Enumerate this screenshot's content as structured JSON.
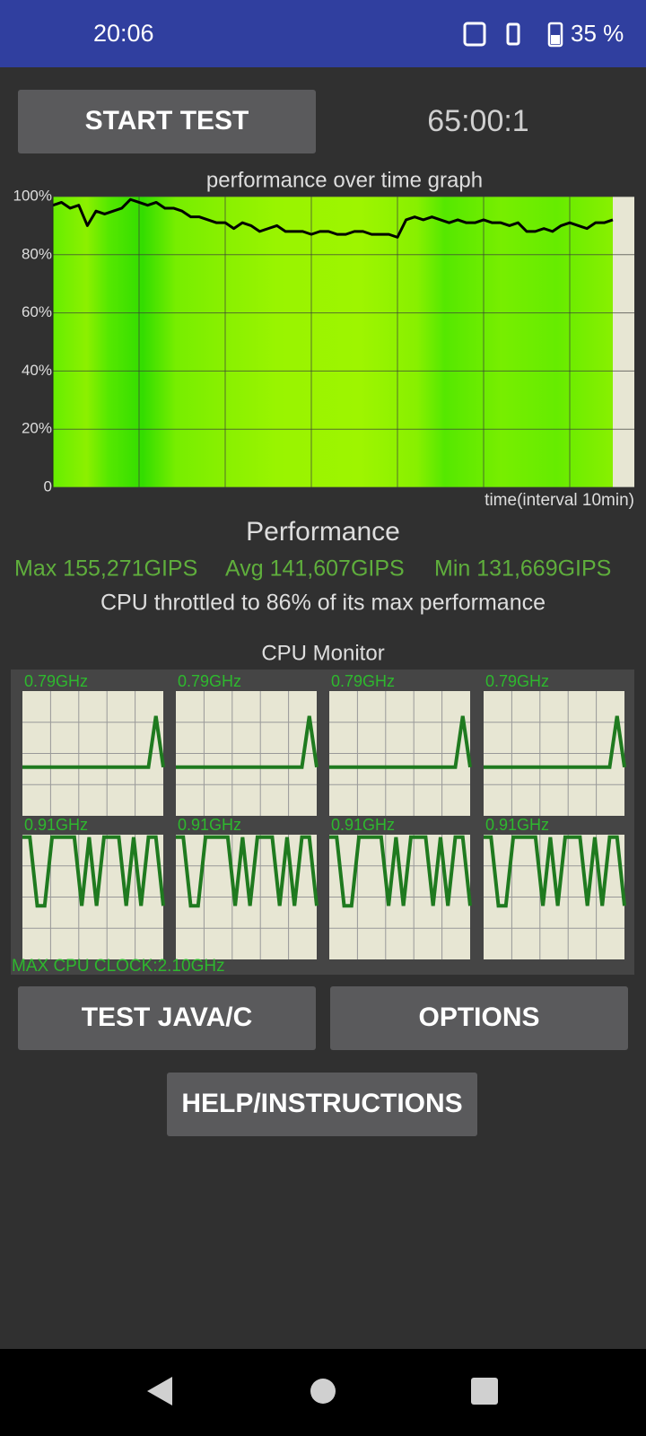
{
  "status_bar": {
    "time": "20:06",
    "battery": "35 %"
  },
  "buttons": {
    "start": "START TEST",
    "test_java": "TEST JAVA/C",
    "options": "OPTIONS",
    "help": "HELP/INSTRUCTIONS"
  },
  "timer": "65:00:1",
  "chart_data": {
    "type": "line",
    "title": "performance over time graph",
    "xlabel": "time(interval 10min)",
    "values": [
      97,
      98,
      96,
      97,
      90,
      95,
      94,
      95,
      96,
      99,
      98,
      97,
      98,
      96,
      96,
      95,
      93,
      93,
      92,
      91,
      91,
      89,
      91,
      90,
      88,
      89,
      90,
      88,
      88,
      88,
      87,
      88,
      88,
      87,
      87,
      88,
      88,
      87,
      87,
      87,
      86,
      92,
      93,
      92,
      93,
      92,
      91,
      92,
      91,
      91,
      92,
      91,
      91,
      90,
      91,
      88,
      88,
      89,
      88,
      90,
      91,
      90,
      89,
      91,
      91,
      92
    ],
    "color": "#000000",
    "ylim": [
      0,
      100
    ],
    "yticks": [
      0,
      {
        "value": 20,
        "label": "20%"
      },
      {
        "value": 40,
        "label": "40%"
      },
      {
        "value": 60,
        "label": "60%"
      },
      {
        "value": 80,
        "label": "80%"
      },
      {
        "value": 100,
        "label": "100%"
      }
    ],
    "grid": true
  },
  "performance": {
    "title": "Performance",
    "max": "Max 155,271GIPS",
    "avg": "Avg 141,607GIPS",
    "min": "Min 131,669GIPS",
    "throttle": "CPU throttled to 86% of its max performance"
  },
  "cpu_monitor": {
    "title": "CPU Monitor",
    "ylim": [
      0,
      100
    ],
    "color": "#1f7a1f",
    "cores": [
      {
        "label": "0.79GHz",
        "values": [
          39,
          39,
          39,
          39,
          39,
          39,
          39,
          39,
          39,
          39,
          39,
          39,
          39,
          39,
          39,
          39,
          39,
          39,
          80,
          39
        ]
      },
      {
        "label": "0.79GHz",
        "values": [
          39,
          39,
          39,
          39,
          39,
          39,
          39,
          39,
          39,
          39,
          39,
          39,
          39,
          39,
          39,
          39,
          39,
          39,
          80,
          39
        ]
      },
      {
        "label": "0.79GHz",
        "values": [
          39,
          39,
          39,
          39,
          39,
          39,
          39,
          39,
          39,
          39,
          39,
          39,
          39,
          39,
          39,
          39,
          39,
          39,
          80,
          39
        ]
      },
      {
        "label": "0.79GHz",
        "values": [
          39,
          39,
          39,
          39,
          39,
          39,
          39,
          39,
          39,
          39,
          39,
          39,
          39,
          39,
          39,
          39,
          39,
          39,
          80,
          39
        ]
      },
      {
        "label": "0.91GHz",
        "values": [
          98,
          98,
          43,
          43,
          98,
          98,
          98,
          98,
          43,
          98,
          43,
          98,
          98,
          98,
          43,
          98,
          43,
          98,
          98,
          43
        ]
      },
      {
        "label": "0.91GHz",
        "values": [
          98,
          98,
          43,
          43,
          98,
          98,
          98,
          98,
          43,
          98,
          43,
          98,
          98,
          98,
          43,
          98,
          43,
          98,
          98,
          43
        ]
      },
      {
        "label": "0.91GHz",
        "values": [
          98,
          98,
          43,
          43,
          98,
          98,
          98,
          98,
          43,
          98,
          43,
          98,
          98,
          98,
          43,
          98,
          43,
          98,
          98,
          43
        ]
      },
      {
        "label": "0.91GHz",
        "values": [
          98,
          98,
          43,
          43,
          98,
          98,
          98,
          98,
          43,
          98,
          43,
          98,
          98,
          98,
          43,
          98,
          43,
          98,
          98,
          43
        ]
      }
    ],
    "max_clock": "MAX CPU CLOCK:2.10GHz"
  }
}
